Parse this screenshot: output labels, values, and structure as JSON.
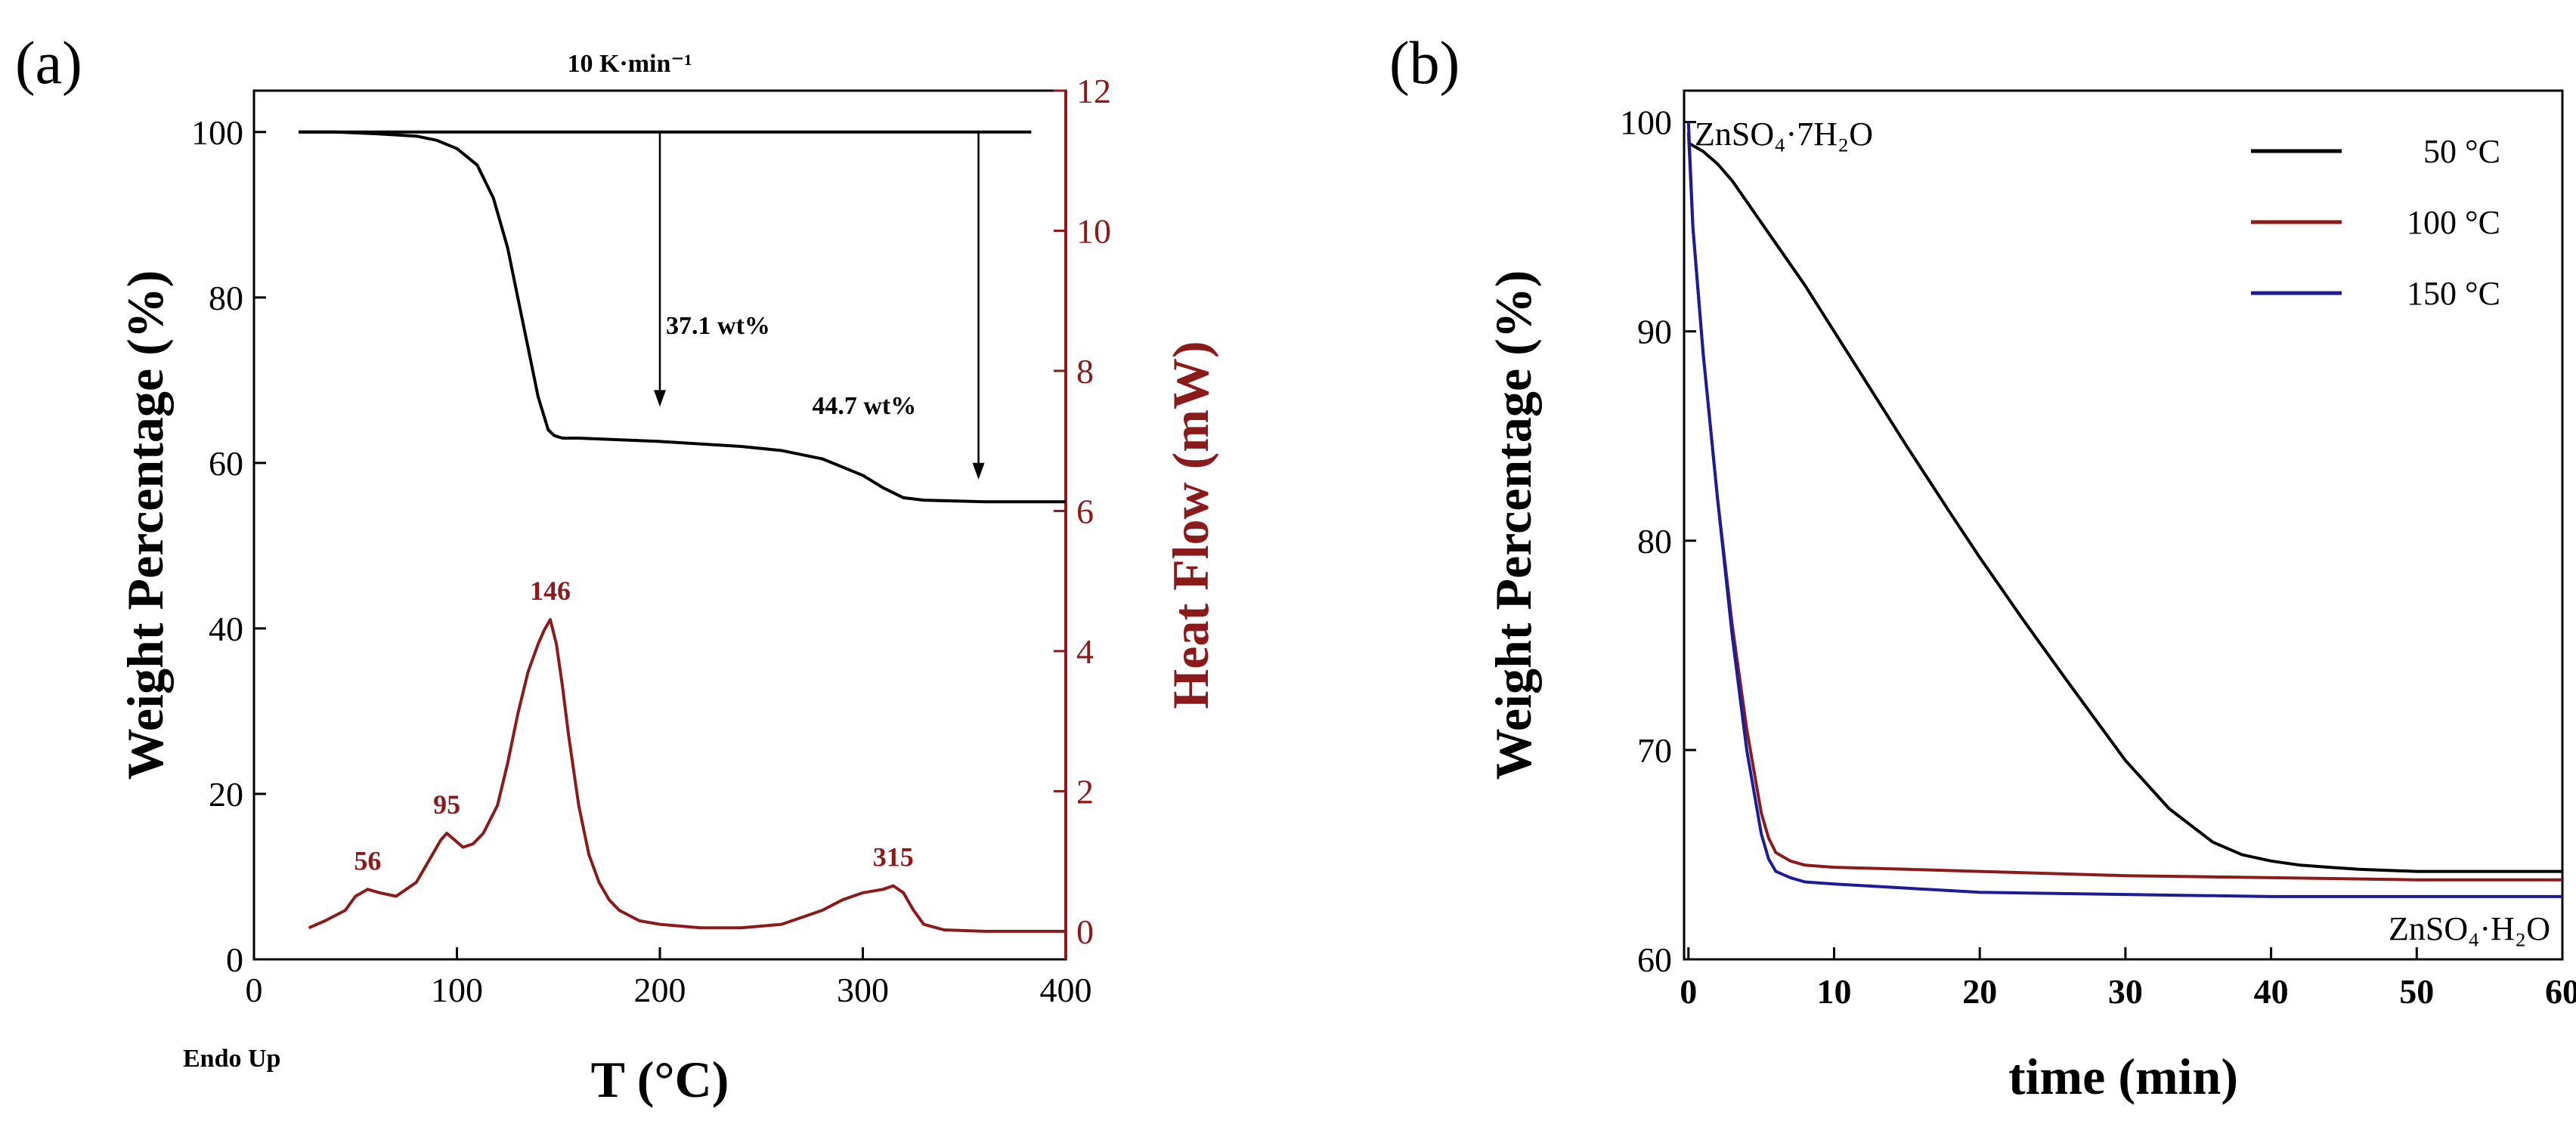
{
  "chart_data": [
    {
      "id": "a",
      "type": "line",
      "panel_label": "(a)",
      "title": "10 K·min⁻¹",
      "xlabel": "T (°C)",
      "ylabel": "Weight Percentage (%)",
      "y2label": "Heat Flow (mW)",
      "xlim": [
        0,
        400
      ],
      "ylim": [
        0,
        105
      ],
      "y2lim": [
        -0.4,
        12
      ],
      "xticks": [
        0,
        100,
        200,
        300,
        400
      ],
      "yticks": [
        0,
        20,
        40,
        60,
        80,
        100
      ],
      "y2ticks": [
        0,
        2,
        4,
        6,
        8,
        10,
        12
      ],
      "corner_label": "Endo Up",
      "colors": {
        "weight": "#000000",
        "heat": "#8b1a1a"
      },
      "series": [
        {
          "name": "Weight Percentage",
          "axis": "left",
          "x": [
            22,
            40,
            60,
            80,
            90,
            100,
            110,
            118,
            125,
            130,
            135,
            140,
            145,
            148,
            152,
            160,
            200,
            240,
            260,
            280,
            290,
            300,
            310,
            320,
            330,
            360,
            400
          ],
          "y": [
            100,
            100,
            99.8,
            99.5,
            99,
            98,
            96,
            92,
            86,
            80,
            74,
            68,
            64,
            63.3,
            63,
            63,
            62.6,
            62,
            61.5,
            60.5,
            59.5,
            58.5,
            57,
            55.8,
            55.5,
            55.3,
            55.3
          ]
        },
        {
          "name": "Heat Flow",
          "axis": "right",
          "x": [
            27,
            35,
            45,
            50,
            56,
            62,
            70,
            80,
            88,
            92,
            95,
            99,
            103,
            108,
            113,
            120,
            125,
            130,
            135,
            140,
            143,
            146,
            149,
            152,
            155,
            160,
            165,
            170,
            175,
            180,
            190,
            200,
            220,
            240,
            260,
            280,
            290,
            300,
            310,
            315,
            320,
            325,
            330,
            340,
            360,
            400
          ],
          "y": [
            0.05,
            0.15,
            0.3,
            0.5,
            0.6,
            0.55,
            0.5,
            0.7,
            1.1,
            1.3,
            1.4,
            1.3,
            1.2,
            1.25,
            1.4,
            1.8,
            2.4,
            3.1,
            3.7,
            4.1,
            4.3,
            4.45,
            4.1,
            3.5,
            2.8,
            1.8,
            1.1,
            0.7,
            0.45,
            0.3,
            0.15,
            0.1,
            0.05,
            0.05,
            0.1,
            0.3,
            0.45,
            0.55,
            0.6,
            0.65,
            0.55,
            0.3,
            0.1,
            0.02,
            0,
            0
          ]
        },
        {
          "name": "Reference line",
          "axis": "left",
          "x": [
            22,
            383
          ],
          "y": [
            100,
            100
          ]
        }
      ],
      "annotations": [
        {
          "text": "37.1 wt%",
          "arrow_x": 200,
          "arrow_from": 100,
          "arrow_to": 66.8
        },
        {
          "text": "44.7 wt%",
          "arrow_x": 357,
          "arrow_from": 100,
          "arrow_to": 58
        }
      ],
      "peak_labels": [
        {
          "text": "56",
          "x": 56,
          "y": 0.6
        },
        {
          "text": "95",
          "x": 95,
          "y": 1.4
        },
        {
          "text": "146",
          "x": 146,
          "y": 4.45
        },
        {
          "text": "315",
          "x": 315,
          "y": 0.65
        }
      ]
    },
    {
      "id": "b",
      "type": "line",
      "panel_label": "(b)",
      "xlabel": "time (min)",
      "ylabel": "Weight Percentage (%)",
      "xlim": [
        -0.3,
        60
      ],
      "ylim": [
        60,
        101.5
      ],
      "xticks": [
        0,
        10,
        20,
        30,
        40,
        50,
        60
      ],
      "yticks": [
        60,
        70,
        80,
        90,
        100
      ],
      "legend_position": "top-right",
      "text_labels": [
        "ZnSO₄·7H₂O",
        "ZnSO₄·H₂O"
      ],
      "series": [
        {
          "name": "50 °C",
          "color": "#000000",
          "x": [
            0,
            1,
            2,
            3,
            4,
            5,
            6,
            8,
            10,
            12,
            15,
            18,
            20,
            23,
            26,
            30,
            33,
            36,
            38,
            40,
            42,
            44,
            46,
            50,
            55,
            60
          ],
          "y": [
            99,
            98.6,
            98,
            97.2,
            96.2,
            95.2,
            94.2,
            92.2,
            90,
            87.8,
            84.5,
            81.3,
            79.2,
            76.2,
            73.3,
            69.5,
            67.2,
            65.6,
            65,
            64.7,
            64.5,
            64.4,
            64.3,
            64.2,
            64.2,
            64.2
          ]
        },
        {
          "name": "100 °C",
          "color": "#8b1a1a",
          "x": [
            0,
            0.3,
            1,
            2,
            3,
            4,
            5,
            5.5,
            6,
            7,
            8,
            10,
            15,
            20,
            30,
            40,
            50,
            60
          ],
          "y": [
            99.5,
            95,
            89,
            82,
            76,
            71,
            67,
            65.8,
            65.1,
            64.7,
            64.5,
            64.4,
            64.3,
            64.2,
            64,
            63.9,
            63.8,
            63.8
          ]
        },
        {
          "name": "150 °C",
          "color": "#1c1c99",
          "x": [
            0,
            0.3,
            1,
            2,
            3,
            4,
            5,
            5.5,
            6,
            7,
            8,
            10,
            15,
            20,
            30,
            40,
            50,
            60
          ],
          "y": [
            100,
            95,
            89,
            82,
            75.5,
            70,
            66,
            64.8,
            64.2,
            63.9,
            63.7,
            63.6,
            63.4,
            63.2,
            63.1,
            63,
            63,
            63
          ]
        }
      ]
    }
  ]
}
